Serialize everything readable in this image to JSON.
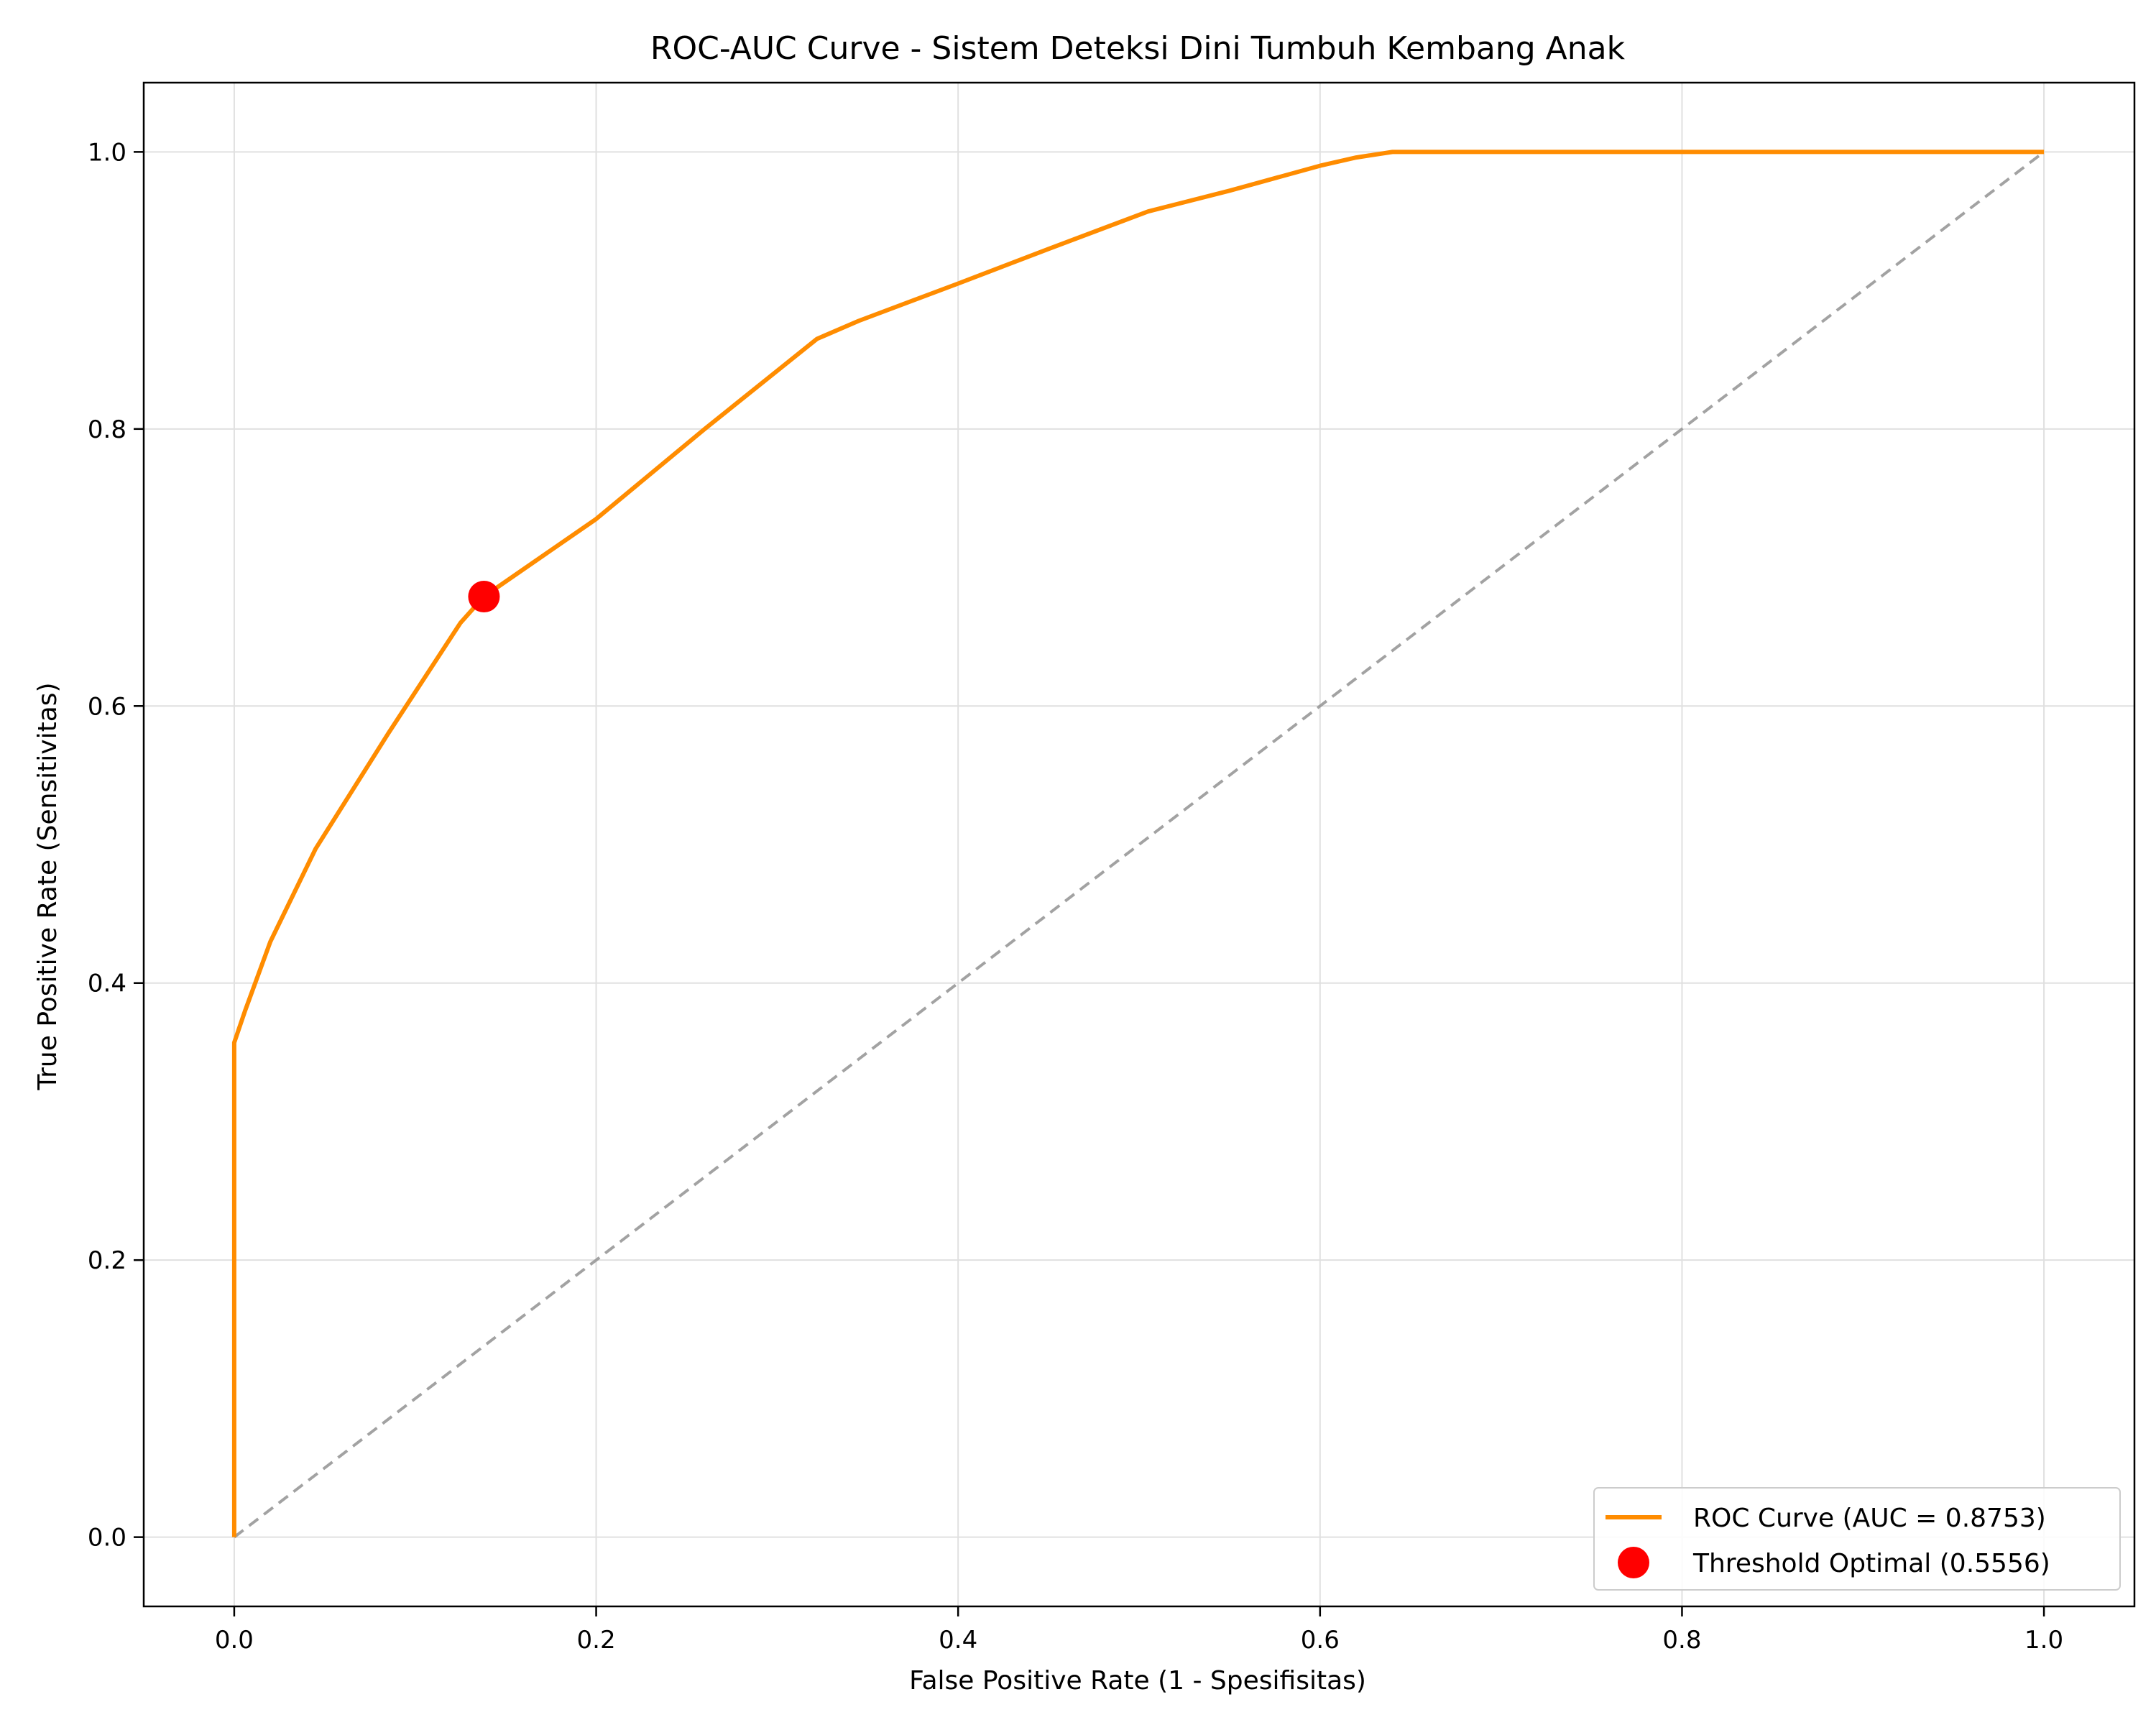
{
  "chart_data": {
    "type": "line",
    "title": "ROC-AUC Curve - Sistem Deteksi Dini Tumbuh Kembang Anak",
    "xlabel": "False Positive Rate (1 - Spesifisitas)",
    "ylabel": "True Positive Rate (Sensitivitas)",
    "xlim": [
      -0.05,
      1.05
    ],
    "ylim": [
      -0.05,
      1.05
    ],
    "xticks": [
      0.0,
      0.2,
      0.4,
      0.6,
      0.8,
      1.0
    ],
    "yticks": [
      0.0,
      0.2,
      0.4,
      0.6,
      0.8,
      1.0
    ],
    "xtick_labels": [
      "0.0",
      "0.2",
      "0.4",
      "0.6",
      "0.8",
      "1.0"
    ],
    "ytick_labels": [
      "0.0",
      "0.2",
      "0.4",
      "0.6",
      "0.8",
      "1.0"
    ],
    "grid": true,
    "legend_position": "bottom-right",
    "series": [
      {
        "name": "ROC Curve (AUC = 0.8753)",
        "type": "line",
        "color": "#ff8c00",
        "x": [
          0.0,
          0.0,
          0.006,
          0.02,
          0.045,
          0.085,
          0.125,
          0.138,
          0.2,
          0.26,
          0.322,
          0.345,
          0.4,
          0.45,
          0.505,
          0.55,
          0.6,
          0.62,
          0.64,
          0.7,
          0.8,
          0.9,
          1.0
        ],
        "y": [
          0.0,
          0.357,
          0.38,
          0.43,
          0.497,
          0.58,
          0.66,
          0.679,
          0.735,
          0.8,
          0.865,
          0.878,
          0.905,
          0.93,
          0.957,
          0.972,
          0.99,
          0.996,
          1.0,
          1.0,
          1.0,
          1.0,
          1.0
        ]
      },
      {
        "name": "Threshold Optimal (0.5556)",
        "type": "scatter",
        "color": "#ff0000",
        "x": [
          0.138
        ],
        "y": [
          0.679
        ]
      },
      {
        "type": "line",
        "style": "dashed",
        "color": "#999999",
        "x": [
          0.0,
          1.0
        ],
        "y": [
          0.0,
          1.0
        ]
      }
    ]
  }
}
